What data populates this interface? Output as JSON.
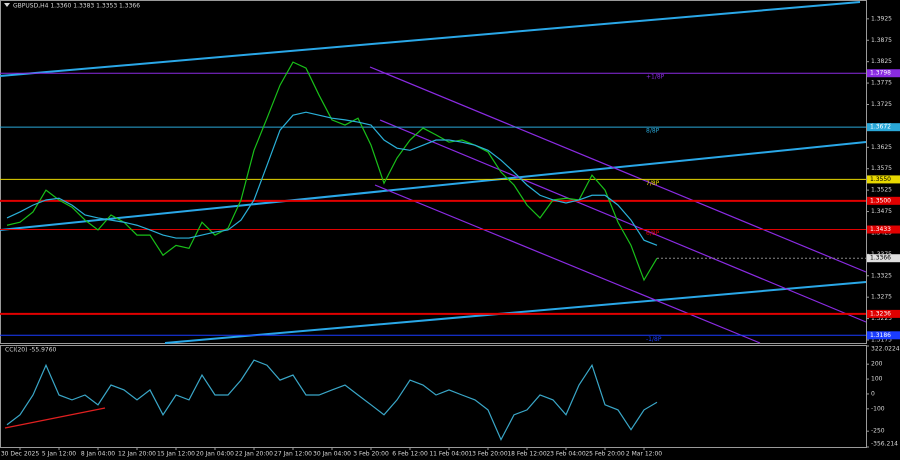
{
  "chart_data": [
    {
      "type": "line",
      "title": "GBPUSD,H4 1.3360 1.3383 1.3353 1.3366",
      "categories": [
        null,
        "30 Dec 2025",
        null,
        null,
        "5 Jan 12:00",
        null,
        null,
        "8 Jan 04:00",
        null,
        null,
        "12 Jan 20:00",
        null,
        null,
        "15 Jan 12:00",
        null,
        null,
        "20 Jan 04:00",
        null,
        null,
        "22 Jan 20:00",
        null,
        null,
        "27 Jan 12:00",
        null,
        null,
        "30 Jan 04:00",
        null,
        null,
        "3 Feb 20:00",
        null,
        null,
        "6 Feb 12:00",
        null,
        null,
        "11 Feb 04:00",
        null,
        null,
        "13 Feb 20:00",
        null,
        null,
        "18 Feb 12:00",
        null,
        null,
        "23 Feb 04:00",
        null,
        null,
        "25 Feb 20:00",
        null,
        null,
        "2 Mar 12:00",
        null
      ],
      "series": [
        {
          "color": "#19c019",
          "values": [
            1.3443,
            1.345,
            1.3474,
            1.3525,
            1.3502,
            1.3485,
            1.3455,
            1.3432,
            1.3467,
            1.345,
            1.342,
            1.342,
            1.3373,
            1.3396,
            1.3389,
            1.345,
            1.342,
            1.3436,
            1.3502,
            1.3618,
            1.3693,
            1.377,
            1.3824,
            1.381,
            1.3747,
            1.3689,
            1.3677,
            1.3693,
            1.363,
            1.3541,
            1.36,
            1.3642,
            1.367,
            1.3654,
            1.3637,
            1.3642,
            1.363,
            1.3614,
            1.3567,
            1.3537,
            1.349,
            1.346,
            1.3502,
            1.3506,
            1.3502,
            1.356,
            1.3525,
            1.345,
            1.3396,
            1.3315,
            1.3366
          ]
        },
        {
          "color": "#2ab0d8",
          "values": [
            1.346,
            1.3474,
            1.349,
            1.3502,
            1.3506,
            1.349,
            1.3467,
            1.346,
            1.3455,
            1.345,
            1.3443,
            1.3432,
            1.342,
            1.3413,
            1.3413,
            1.342,
            1.3427,
            1.3432,
            1.3455,
            1.3502,
            1.3583,
            1.3665,
            1.37,
            1.3707,
            1.37,
            1.3693,
            1.3689,
            1.3684,
            1.3677,
            1.3642,
            1.3623,
            1.3618,
            1.363,
            1.3642,
            1.3642,
            1.3637,
            1.363,
            1.3618,
            1.3595,
            1.3567,
            1.3537,
            1.3513,
            1.3502,
            1.3495,
            1.3502,
            1.3513,
            1.3513,
            1.349,
            1.3455,
            1.3408,
            1.3396
          ]
        }
      ],
      "levels": [
        {
          "value": 1.3798,
          "label": "1.3798",
          "text": "+1/8P",
          "color": "#8a2be2"
        },
        {
          "value": 1.3672,
          "label": "1.3672",
          "text": "8/8P",
          "color": "#2aa8d8"
        },
        {
          "value": 1.355,
          "label": "1.3550",
          "text": "7/8P",
          "color": "#e8d800"
        },
        {
          "value": 1.35,
          "label": "1.3500",
          "color": "#e00000"
        },
        {
          "value": 1.3433,
          "label": "1.3433",
          "text": "6/8P",
          "color": "#e00000"
        },
        {
          "value": 1.3236,
          "label": "1.3236",
          "color": "#e00000"
        },
        {
          "value": 1.3186,
          "label": "1.3186",
          "text": "-1/8P",
          "color": "#1a3cff"
        }
      ],
      "last_price": 1.3366,
      "ylim": [
        1.3168,
        1.3969
      ],
      "yticks": [
        1.3925,
        1.3875,
        1.3825,
        1.3775,
        1.3725,
        1.3675,
        1.3625,
        1.3575,
        1.3525,
        1.3475,
        1.3425,
        1.3375,
        1.3325,
        1.3275,
        1.3225,
        1.3175
      ]
    },
    {
      "type": "line",
      "title": "CCI(20) -55.9760",
      "series": [
        {
          "color": "#3aa7c8",
          "values": [
            -207,
            -140,
            -7,
            193,
            -7,
            -40,
            -7,
            -73,
            60,
            27,
            -40,
            27,
            -140,
            -7,
            -40,
            127,
            -7,
            -7,
            93,
            227,
            193,
            93,
            127,
            -7,
            -7,
            27,
            60,
            -7,
            -73,
            -140,
            -40,
            93,
            60,
            -7,
            27,
            -7,
            -40,
            -107,
            -307,
            -140,
            -107,
            -7,
            -40,
            -140,
            60,
            193,
            -73,
            -107,
            -240,
            -107,
            -56
          ]
        }
      ],
      "ylim": [
        -356.214,
        322.0224
      ],
      "yticks": [
        322.0224,
        200,
        100,
        0,
        -100,
        -250,
        -356.214
      ]
    }
  ]
}
